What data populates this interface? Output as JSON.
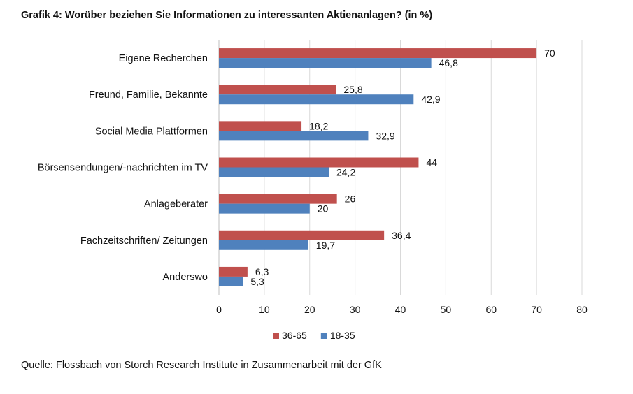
{
  "chart_data": {
    "type": "bar",
    "orientation": "horizontal",
    "title": "Grafik 4: Worüber beziehen Sie Informationen zu interessanten Aktienanlagen? (in %)",
    "categories": [
      "Eigene Recherchen",
      "Freund, Familie, Bekannte",
      "Social Media Plattformen",
      "Börsensendungen/-nachrichten im TV",
      "Anlageberater",
      "Fachzeitschriften/ Zeitungen",
      "Anderswo"
    ],
    "series": [
      {
        "name": "36-65",
        "color": "#c0504d",
        "values": [
          70,
          25.8,
          18.2,
          44,
          26,
          36.4,
          6.3
        ],
        "labels": [
          "70",
          "25,8",
          "18,2",
          "44",
          "26",
          "36,4",
          "6,3"
        ]
      },
      {
        "name": "18-35",
        "color": "#4f81bd",
        "values": [
          46.8,
          42.9,
          32.9,
          24.2,
          20,
          19.7,
          5.3
        ],
        "labels": [
          "46,8",
          "42,9",
          "32,9",
          "24,2",
          "20",
          "19,7",
          "5,3"
        ]
      }
    ],
    "xlim": [
      0,
      80
    ],
    "xticks": [
      "0",
      "10",
      "20",
      "30",
      "40",
      "50",
      "60",
      "70",
      "80"
    ],
    "grid": true,
    "legend": "bottom",
    "source": "Quelle: Flossbach von Storch Research Institute in Zusammenarbeit mit der GfK"
  }
}
